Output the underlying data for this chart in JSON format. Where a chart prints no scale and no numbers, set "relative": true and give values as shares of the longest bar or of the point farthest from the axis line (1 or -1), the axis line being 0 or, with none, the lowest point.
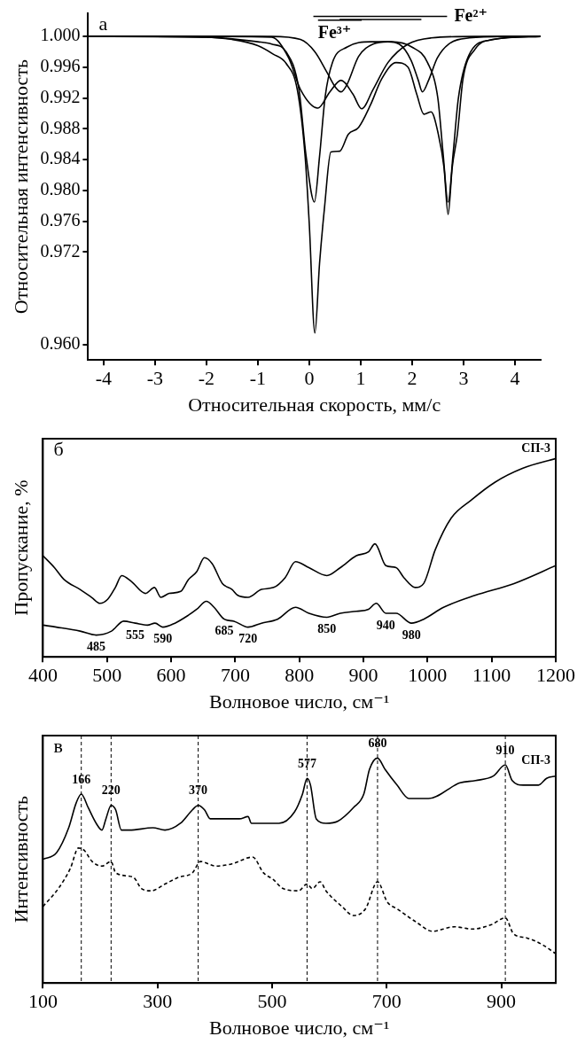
{
  "chart_data": [
    {
      "type": "line",
      "title": "а",
      "xlabel": "Относительная скорость, мм/с",
      "ylabel": "Относительная интенсивность",
      "xlim": [
        -4.3,
        4.5
      ],
      "ylim": [
        0.958,
        1.003
      ],
      "xticks": [
        -4,
        -3,
        -2,
        -1,
        0,
        1,
        2,
        3,
        4
      ],
      "yticks": [
        {
          "value": 1,
          "label": "1.000"
        },
        0.996,
        0.992,
        0.988,
        0.984,
        {
          "value": 0.98,
          "label": "0.980"
        },
        0.976,
        0.972,
        {
          "value": 0.96,
          "label": "0.960"
        }
      ],
      "grid": false,
      "legend": false,
      "series": [
        {
          "color": "#000000",
          "x": [
            -4.3,
            -3,
            -2,
            -1.5,
            -1,
            -0.7,
            -0.45,
            -0.23,
            -0.08,
            0,
            0.11,
            0.2,
            0.3,
            0.42,
            0.59,
            0.76,
            0.96,
            1.19,
            1.41,
            1.69,
            1.92,
            2.09,
            2.23,
            2.37,
            2.51,
            2.62,
            2.7,
            2.78,
            2.88,
            2.99,
            3.22,
            3.56,
            4.5
          ],
          "values": [
            1.0,
            1.0,
            0.9999,
            0.9996,
            0.9988,
            0.9977,
            0.9965,
            0.993,
            0.9844,
            0.9757,
            0.9615,
            0.9705,
            0.978,
            0.985,
            0.9851,
            0.9873,
            0.9882,
            0.9911,
            0.9945,
            0.9966,
            0.996,
            0.9925,
            0.9899,
            0.9902,
            0.9873,
            0.983,
            0.9769,
            0.983,
            0.9873,
            0.9945,
            0.9983,
            0.9996,
            1.0
          ]
        },
        {
          "color": "#000000",
          "x": [
            -4.3,
            -2,
            -1,
            -0.73,
            -0.45,
            -0.2,
            -0.06,
            0.1,
            0.2,
            0.31,
            0.45,
            0.73,
            1.2,
            1.6,
            2.0,
            2.3,
            2.5,
            2.6,
            2.7,
            2.8,
            2.9,
            3.1,
            3.5,
            4.5
          ],
          "values": [
            1.0,
            0.9999,
            0.9993,
            0.999,
            0.998,
            0.9931,
            0.9844,
            0.9785,
            0.9844,
            0.9922,
            0.9966,
            0.9986,
            0.9993,
            0.9993,
            0.9986,
            0.9966,
            0.992,
            0.985,
            0.9785,
            0.985,
            0.992,
            0.9975,
            0.9995,
            1.0
          ]
        },
        {
          "color": "#000000",
          "x": [
            -4.3,
            -2,
            -0.73,
            -0.4,
            -0.17,
            0.17,
            0.4,
            0.62,
            0.85,
            1.02,
            1.24,
            1.53,
            1.92,
            2.37,
            3.22,
            4.5
          ],
          "values": [
            1.0,
            1.0,
            0.9999,
            0.9972,
            0.9931,
            0.9907,
            0.9928,
            0.9943,
            0.9925,
            0.9906,
            0.9931,
            0.9966,
            0.999,
            0.9998,
            1.0,
            1.0
          ]
        },
        {
          "color": "#000000",
          "x": [
            -4.3,
            -0.73,
            -0.17,
            0.11,
            0.34,
            0.51,
            0.62,
            0.73,
            0.96,
            1.24,
            1.53,
            1.75,
            1.98,
            2.12,
            2.2,
            2.32,
            2.49,
            2.71,
            3.11,
            3.79,
            4.5
          ],
          "values": [
            1.0,
            1.0,
            0.9996,
            0.998,
            0.9954,
            0.9934,
            0.9928,
            0.9937,
            0.9974,
            0.999,
            0.9993,
            0.999,
            0.9969,
            0.9943,
            0.9928,
            0.9943,
            0.9972,
            0.999,
            0.9998,
            1.0,
            1.0
          ]
        },
        {
          "name": "Fe²⁺",
          "color": "#000000",
          "x": [
            0.08,
            2.68
          ],
          "values": [
            1.0026,
            1.0026
          ]
        },
        {
          "color": "#000000",
          "x": [
            0.59,
            2.18
          ],
          "values": [
            1.0022,
            1.0022
          ]
        },
        {
          "name": "Fe³⁺",
          "color": "#000000",
          "x": [
            0.17,
            1.02
          ],
          "values": [
            1.0021,
            1.0021
          ]
        }
      ]
    },
    {
      "type": "line",
      "title": "б",
      "xlabel": "Волновое число, см⁻¹",
      "ylabel": "Пропускание, %",
      "xlim": [
        400,
        1200
      ],
      "xticks": [
        400,
        500,
        600,
        700,
        800,
        900,
        1000,
        1100,
        1200
      ],
      "relative": true,
      "grid": false,
      "legend": false,
      "series": [
        {
          "name": "СП-3",
          "color": "#000000",
          "x": [
            400,
            418,
            433,
            458,
            476,
            489,
            501,
            513,
            523,
            538,
            560,
            574,
            584,
            597,
            615,
            627,
            640,
            652,
            664,
            680,
            695,
            704,
            720,
            741,
            760,
            778,
            794,
            815,
            843,
            864,
            889,
            908,
            918,
            935,
            951,
            963,
            981,
            994,
            1012,
            1037,
            1068,
            1105,
            1148,
            1200
          ],
          "values": [
            0.51,
            0.45,
            0.39,
            0.34,
            0.3,
            0.27,
            0.29,
            0.35,
            0.41,
            0.38,
            0.32,
            0.35,
            0.3,
            0.32,
            0.33,
            0.39,
            0.43,
            0.5,
            0.47,
            0.37,
            0.34,
            0.31,
            0.3,
            0.34,
            0.35,
            0.4,
            0.48,
            0.45,
            0.41,
            0.45,
            0.51,
            0.53,
            0.57,
            0.46,
            0.45,
            0.4,
            0.35,
            0.37,
            0.54,
            0.7,
            0.79,
            0.88,
            0.95,
            1
          ]
        },
        {
          "color": "#000000",
          "x": [
            400,
            421,
            458,
            483,
            507,
            526,
            544,
            563,
            575,
            587,
            606,
            627,
            640,
            655,
            667,
            683,
            698,
            720,
            741,
            766,
            794,
            815,
            843,
            864,
            889,
            908,
            920,
            935,
            951,
            975,
            994,
            1025,
            1074,
            1135,
            1200
          ],
          "values": [
            0.16,
            0.15,
            0.13,
            0.11,
            0.13,
            0.18,
            0.17,
            0.16,
            0.17,
            0.15,
            0.17,
            0.21,
            0.24,
            0.28,
            0.25,
            0.19,
            0.18,
            0.15,
            0.17,
            0.19,
            0.25,
            0.22,
            0.2,
            0.22,
            0.23,
            0.24,
            0.27,
            0.22,
            0.22,
            0.17,
            0.19,
            0.25,
            0.31,
            0.37,
            0.46
          ]
        }
      ],
      "annotations": [
        {
          "text": "485",
          "x": 483,
          "y": 0.11
        },
        {
          "text": "555",
          "x": 544,
          "y": 0.17
        },
        {
          "text": "590",
          "x": 587,
          "y": 0.15
        },
        {
          "text": "685",
          "x": 683,
          "y": 0.19
        },
        {
          "text": "720",
          "x": 720,
          "y": 0.15
        },
        {
          "text": "850",
          "x": 843,
          "y": 0.2
        },
        {
          "text": "940",
          "x": 935,
          "y": 0.22
        },
        {
          "text": "980",
          "x": 975,
          "y": 0.17
        }
      ]
    },
    {
      "type": "line",
      "title": "в",
      "xlabel": "Волновое число, см⁻¹",
      "ylabel": "Интенсивность",
      "xlim": [
        100,
        995
      ],
      "xticks": [
        100,
        300,
        500,
        700,
        900
      ],
      "relative": true,
      "grid": false,
      "legend": false,
      "series": [
        {
          "name": "СП-3",
          "color": "#000000",
          "x": [
            100,
            124,
            145,
            158,
            167,
            179,
            193,
            203,
            210,
            219,
            227,
            237,
            251,
            292,
            313,
            340,
            361,
            371,
            382,
            392,
            409,
            443,
            458,
            464,
            478,
            512,
            539,
            553,
            561,
            567,
            577,
            594,
            615,
            642,
            660,
            670,
            684,
            697,
            718,
            739,
            773,
            828,
            855,
            886,
            907,
            919,
            938,
            965,
            979,
            995
          ],
          "values": [
            0.55,
            0.58,
            0.69,
            0.8,
            0.84,
            0.78,
            0.71,
            0.68,
            0.73,
            0.79,
            0.77,
            0.68,
            0.68,
            0.69,
            0.68,
            0.71,
            0.77,
            0.79,
            0.77,
            0.73,
            0.73,
            0.73,
            0.74,
            0.71,
            0.71,
            0.71,
            0.76,
            0.84,
            0.91,
            0.88,
            0.73,
            0.71,
            0.72,
            0.78,
            0.84,
            0.95,
            1,
            0.95,
            0.88,
            0.82,
            0.82,
            0.89,
            0.9,
            0.92,
            0.97,
            0.9,
            0.88,
            0.88,
            0.91,
            0.92
          ]
        },
        {
          "color": "#000000",
          "line_style": "dashed",
          "x": [
            100,
            127,
            148,
            162,
            172,
            186,
            203,
            219,
            227,
            258,
            272,
            289,
            313,
            337,
            361,
            375,
            402,
            430,
            466,
            485,
            502,
            519,
            546,
            561,
            570,
            584,
            594,
            622,
            642,
            663,
            684,
            701,
            718,
            752,
            780,
            818,
            849,
            883,
            907,
            921,
            945,
            972,
            995
          ],
          "values": [
            0.34,
            0.42,
            0.51,
            0.6,
            0.59,
            0.54,
            0.52,
            0.54,
            0.49,
            0.47,
            0.42,
            0.41,
            0.44,
            0.47,
            0.49,
            0.54,
            0.52,
            0.53,
            0.56,
            0.49,
            0.46,
            0.42,
            0.41,
            0.44,
            0.42,
            0.45,
            0.41,
            0.34,
            0.3,
            0.33,
            0.45,
            0.36,
            0.33,
            0.27,
            0.23,
            0.25,
            0.24,
            0.26,
            0.29,
            0.22,
            0.2,
            0.17,
            0.13
          ]
        }
      ],
      "ref_lines": [
        {
          "axis": "x",
          "value": 167
        },
        {
          "axis": "x",
          "value": 219
        },
        {
          "axis": "x",
          "value": 371
        },
        {
          "axis": "x",
          "value": 561
        },
        {
          "axis": "x",
          "value": 684
        },
        {
          "axis": "x",
          "value": 907
        }
      ],
      "annotations": [
        {
          "text": "166",
          "x": 167,
          "y": 0.84
        },
        {
          "text": "220",
          "x": 219,
          "y": 0.79
        },
        {
          "text": "370",
          "x": 371,
          "y": 0.79
        },
        {
          "text": "577",
          "x": 561,
          "y": 0.91
        },
        {
          "text": "680",
          "x": 684,
          "y": 1
        },
        {
          "text": "910",
          "x": 907,
          "y": 0.97
        }
      ]
    }
  ]
}
